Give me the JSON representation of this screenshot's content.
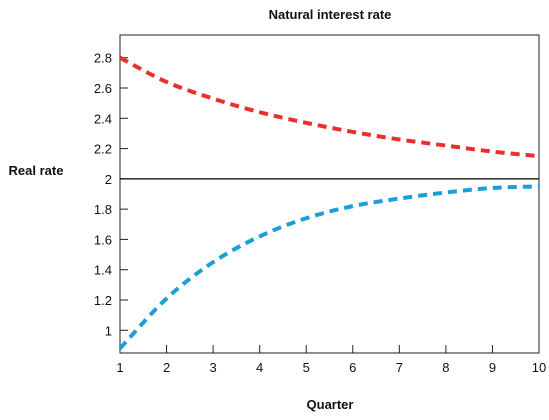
{
  "chart_data": {
    "type": "line",
    "title": "Natural interest rate",
    "xlabel": "Quarter",
    "ylabel": "Real rate",
    "xlim": [
      1,
      10
    ],
    "ylim": [
      0.85,
      2.95
    ],
    "x_ticks": [
      1,
      2,
      3,
      4,
      5,
      6,
      7,
      8,
      9,
      10
    ],
    "y_ticks": [
      {
        "value": 1,
        "label": "1"
      },
      {
        "value": 1.2,
        "label": "1.2"
      },
      {
        "value": 1.4,
        "label": "1.4"
      },
      {
        "value": 1.6,
        "label": "1.6"
      },
      {
        "value": 1.8,
        "label": "1.8"
      },
      {
        "value": 2,
        "label": "2"
      },
      {
        "value": 2.2,
        "label": "2.2"
      },
      {
        "value": 2.4,
        "label": "2.4"
      },
      {
        "value": 2.6,
        "label": "2.6"
      },
      {
        "value": 2.8,
        "label": "2.8"
      }
    ],
    "reference_line": {
      "y": 2,
      "color": "#000000"
    },
    "grid": false,
    "series": [
      {
        "color": "#e8312f",
        "dashed": true,
        "x": [
          1,
          2,
          3,
          4,
          5,
          6,
          7,
          8,
          9,
          10
        ],
        "values": [
          2.8,
          2.64,
          2.53,
          2.44,
          2.37,
          2.31,
          2.26,
          2.22,
          2.18,
          2.15
        ]
      },
      {
        "color": "#1a9fd8",
        "dashed": true,
        "x": [
          1,
          2,
          3,
          4,
          5,
          6,
          7,
          8,
          9,
          10
        ],
        "values": [
          0.88,
          1.21,
          1.45,
          1.62,
          1.74,
          1.82,
          1.87,
          1.91,
          1.94,
          1.95
        ]
      }
    ]
  }
}
